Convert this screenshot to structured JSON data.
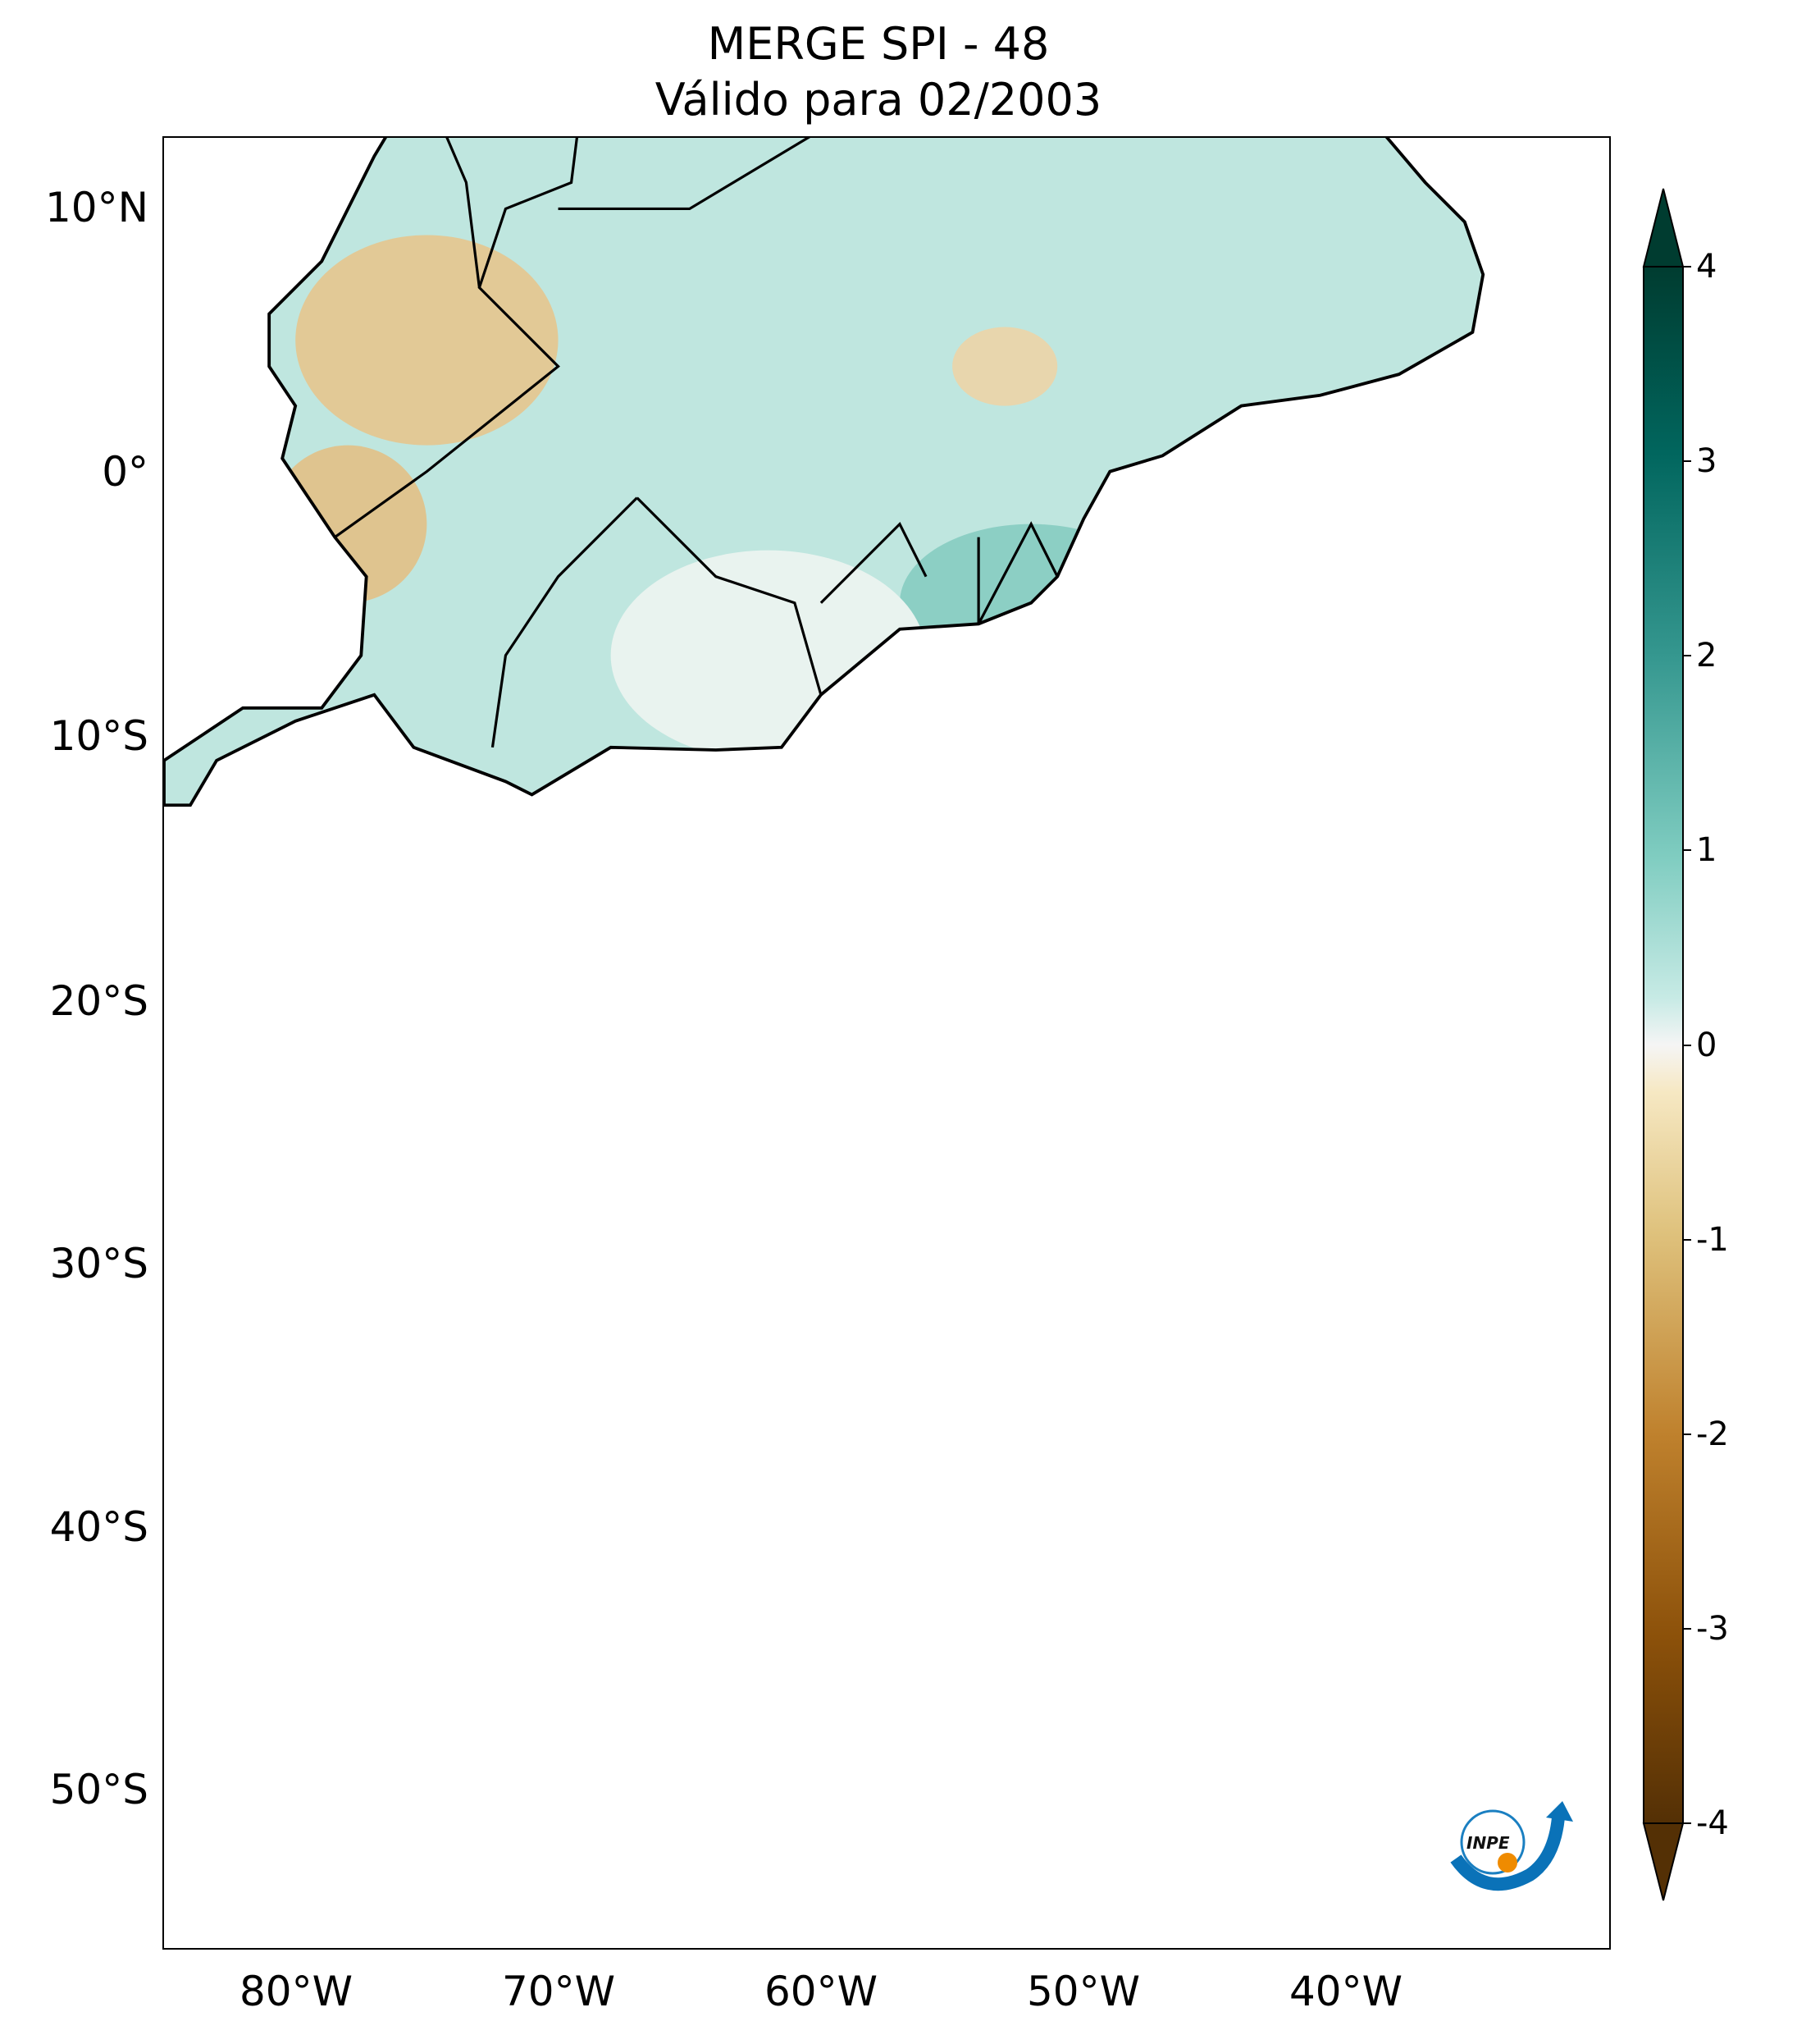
{
  "title": {
    "line1": "MERGE   SPI - 48",
    "line2": "Válido para 02/2003"
  },
  "axes": {
    "lat_ticks": [
      "10°N",
      "0°",
      "10°S",
      "20°S",
      "30°S",
      "40°S",
      "50°S"
    ],
    "lon_ticks": [
      "80°W",
      "70°W",
      "60°W",
      "50°W",
      "40°W"
    ]
  },
  "colorbar": {
    "ticks": [
      "4",
      "3",
      "2",
      "1",
      "0",
      "-1",
      "-2",
      "-3",
      "-4"
    ],
    "range": [
      -4,
      4
    ],
    "extend": "both",
    "colors": {
      "min": "#543005",
      "mid": "#f5f5f5",
      "max": "#003c30",
      "dry": "#bf812d",
      "wet": "#35978f"
    }
  },
  "logo": {
    "text": "INPE"
  }
}
